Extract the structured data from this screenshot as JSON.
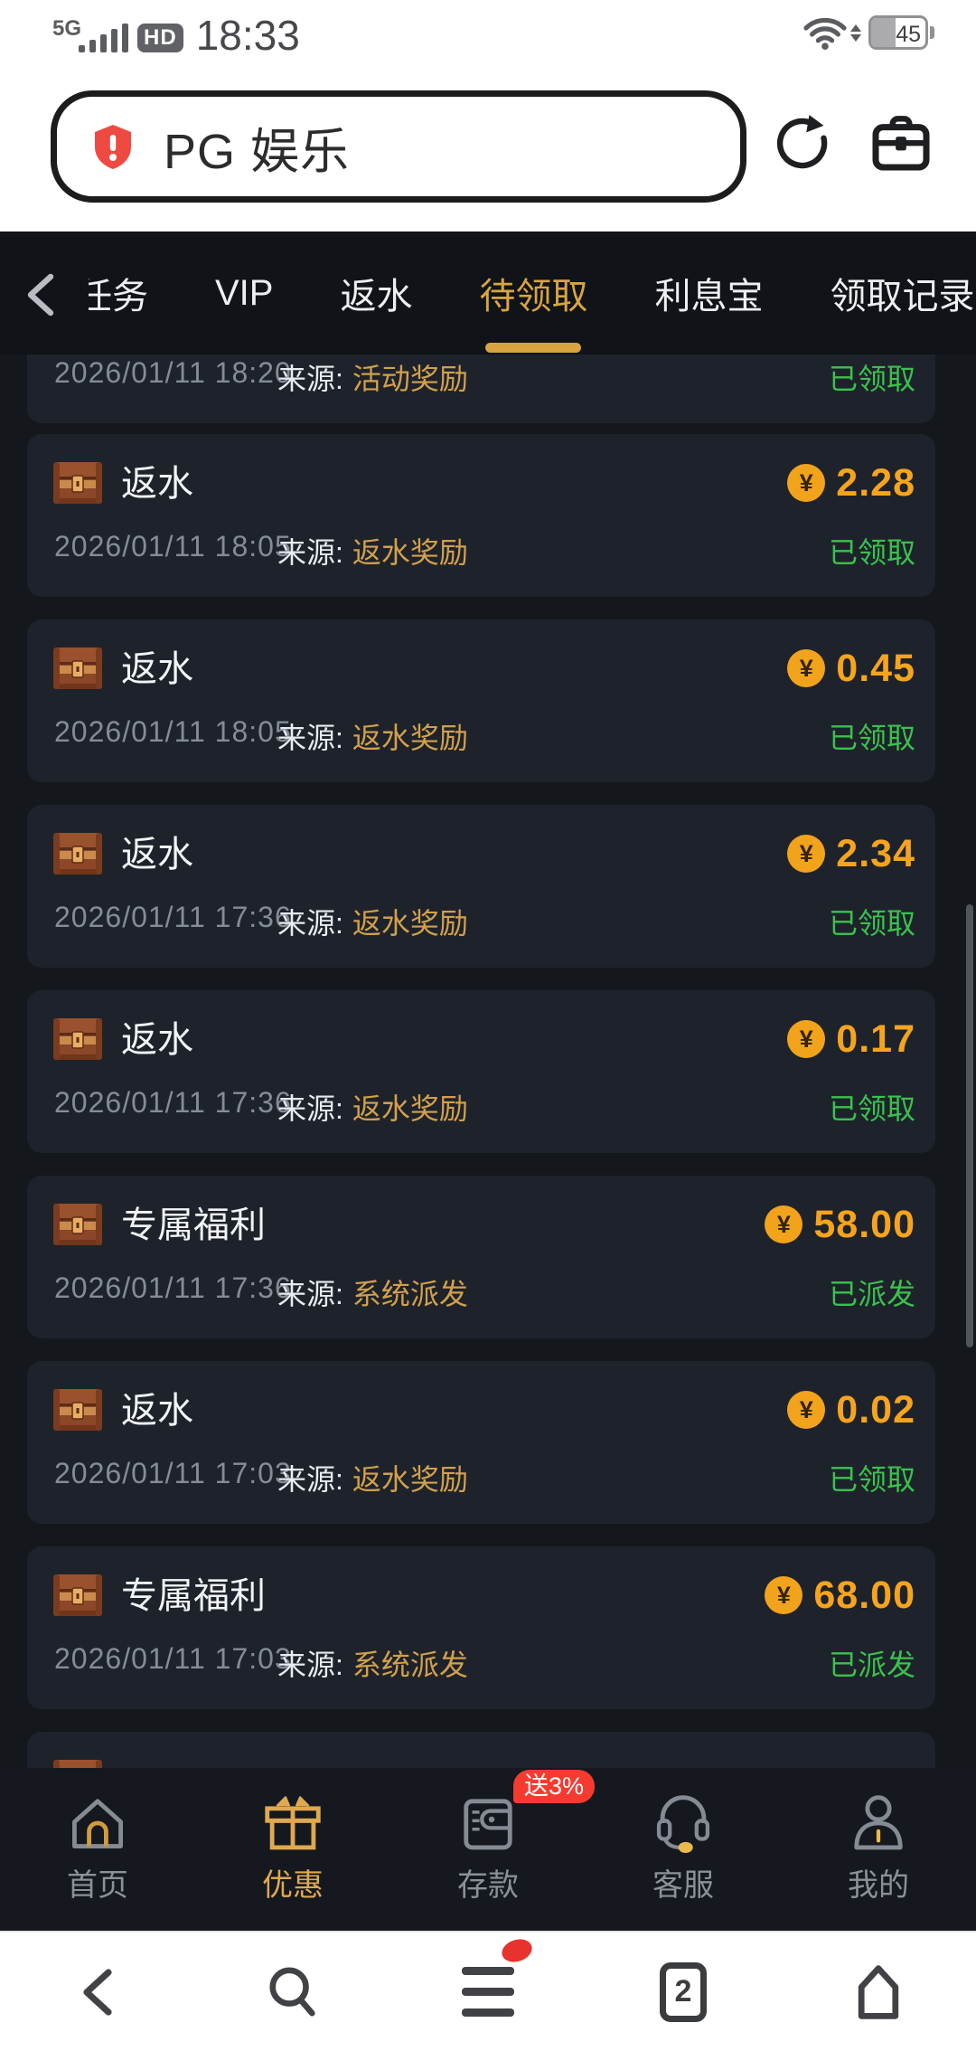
{
  "status_bar": {
    "network": "5G",
    "hd": "HD",
    "time": "18:33",
    "battery_percent": "45",
    "icons": [
      "signal-bars-icon",
      "wifi-icon",
      "battery-icon"
    ]
  },
  "browser": {
    "address_title": "PG 娱乐",
    "security_icon": "warning-shield-icon",
    "security_color": "#ef4a41",
    "actions": [
      {
        "icon": "refresh-icon"
      },
      {
        "icon": "toolbox-icon"
      }
    ]
  },
  "tab_bar": {
    "back_icon": "chevron-left-icon",
    "items": [
      {
        "label": "任务",
        "active": false
      },
      {
        "label": "VIP",
        "active": false
      },
      {
        "label": "返水",
        "active": false
      },
      {
        "label": "待领取",
        "active": true
      },
      {
        "label": "利息宝",
        "active": false
      },
      {
        "label": "领取记录",
        "active": false
      }
    ]
  },
  "labels": {
    "source_prefix": "来源:",
    "currency_symbol": "¥"
  },
  "records": [
    {
      "title": "",
      "amount": "",
      "date": "2026/01/11 18:20",
      "source": "活动奖励",
      "status": "已领取"
    },
    {
      "title": "返水",
      "amount": "2.28",
      "date": "2026/01/11 18:05",
      "source": "返水奖励",
      "status": "已领取"
    },
    {
      "title": "返水",
      "amount": "0.45",
      "date": "2026/01/11 18:05",
      "source": "返水奖励",
      "status": "已领取"
    },
    {
      "title": "返水",
      "amount": "2.34",
      "date": "2026/01/11 17:36",
      "source": "返水奖励",
      "status": "已领取"
    },
    {
      "title": "返水",
      "amount": "0.17",
      "date": "2026/01/11 17:36",
      "source": "返水奖励",
      "status": "已领取"
    },
    {
      "title": "专属福利",
      "amount": "58.00",
      "date": "2026/01/11 17:36",
      "source": "系统派发",
      "status": "已派发"
    },
    {
      "title": "返水",
      "amount": "0.02",
      "date": "2026/01/11 17:03",
      "source": "返水奖励",
      "status": "已领取"
    },
    {
      "title": "专属福利",
      "amount": "68.00",
      "date": "2026/01/11 17:03",
      "source": "系统派发",
      "status": "已派发"
    },
    {
      "title": "",
      "amount": "",
      "date": "",
      "source": "",
      "status": ""
    }
  ],
  "bottom_nav": {
    "items": [
      {
        "label": "首页",
        "icon": "home-icon",
        "active": false
      },
      {
        "label": "优惠",
        "icon": "gift-icon",
        "active": true
      },
      {
        "label": "存款",
        "icon": "wallet-icon",
        "active": false,
        "badge": "送3%"
      },
      {
        "label": "客服",
        "icon": "headset-icon",
        "active": false
      },
      {
        "label": "我的",
        "icon": "user-icon",
        "active": false
      }
    ]
  },
  "system_nav": {
    "items": [
      {
        "icon": "back-chevron-icon"
      },
      {
        "icon": "search-icon"
      },
      {
        "icon": "menu-icon",
        "has_notification_dot": true
      },
      {
        "icon": "tab-counter-icon",
        "count": "2"
      },
      {
        "icon": "home-outline-icon"
      }
    ]
  },
  "colors": {
    "page_bg": "#14171c",
    "card_bg": "#1e232b",
    "tab_bar_bg": "#101317",
    "accent_gold": "#d9a440",
    "amount_orange": "#f7a41d",
    "source_gold": "#d2a04c",
    "success_green": "#39c24d",
    "badge_red": "#f53b30",
    "date_gray": "#858c96"
  }
}
